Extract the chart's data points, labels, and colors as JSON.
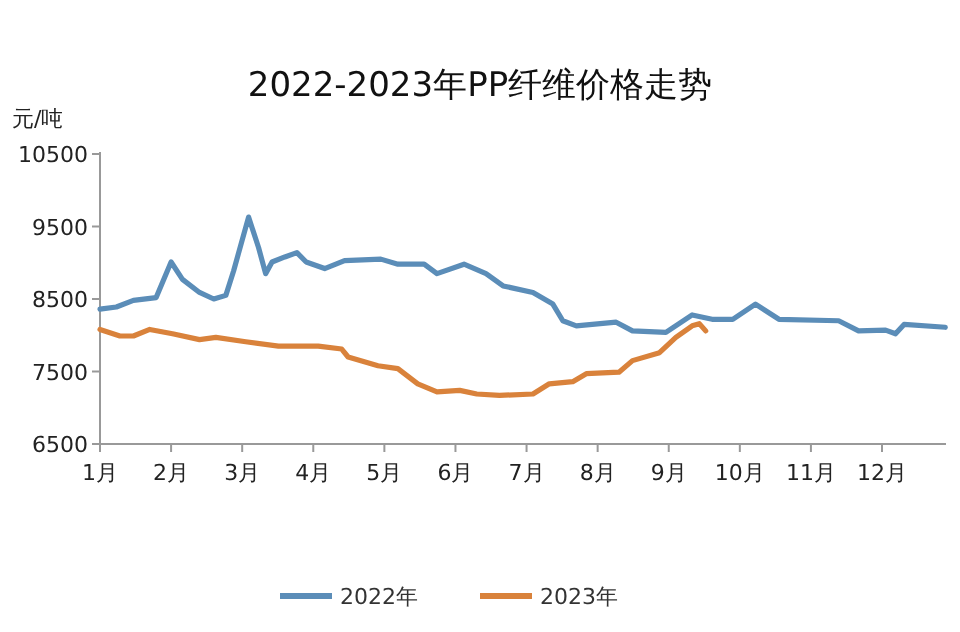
{
  "chart_data": {
    "type": "line",
    "title": "2022-2023年PP纤维价格走势",
    "ylabel": "元/吨",
    "xlim": [
      1,
      12.9
    ],
    "ylim": [
      6500,
      10500
    ],
    "xticks": [
      {
        "value": 1,
        "label": "1月"
      },
      {
        "value": 2,
        "label": "2月"
      },
      {
        "value": 3,
        "label": "3月"
      },
      {
        "value": 4,
        "label": "4月"
      },
      {
        "value": 5,
        "label": "5月"
      },
      {
        "value": 6,
        "label": "6月"
      },
      {
        "value": 7,
        "label": "7月"
      },
      {
        "value": 8,
        "label": "8月"
      },
      {
        "value": 9,
        "label": "9月"
      },
      {
        "value": 10,
        "label": "10月"
      },
      {
        "value": 11,
        "label": "11月"
      },
      {
        "value": 12,
        "label": "12月"
      }
    ],
    "yticks": [
      6500,
      7500,
      8500,
      9500,
      10500
    ],
    "legend": "bottom",
    "series": [
      {
        "name": "2022年",
        "color": "#5b8db8",
        "x": [
          1,
          1.23,
          1.47,
          1.79,
          2.0,
          2.16,
          2.4,
          2.6,
          2.77,
          2.88,
          3.09,
          3.23,
          3.33,
          3.42,
          3.6,
          3.77,
          3.9,
          4.16,
          4.44,
          4.95,
          5.19,
          5.56,
          5.74,
          6.12,
          6.43,
          6.67,
          7.09,
          7.37,
          7.51,
          7.7,
          8.26,
          8.49,
          8.96,
          9.33,
          9.61,
          9.9,
          10.22,
          10.55,
          11.39,
          11.67,
          12.05,
          12.19,
          12.31,
          12.89
        ],
        "values": [
          8360,
          8390,
          8480,
          8520,
          9010,
          8770,
          8590,
          8500,
          8550,
          8890,
          9630,
          9210,
          8850,
          9010,
          9080,
          9140,
          9010,
          8920,
          9030,
          9050,
          8980,
          8980,
          8850,
          8980,
          8850,
          8680,
          8590,
          8430,
          8200,
          8130,
          8180,
          8060,
          8040,
          8280,
          8220,
          8220,
          8430,
          8220,
          8200,
          8060,
          8070,
          8020,
          8150,
          8110
        ]
      },
      {
        "name": "2023年",
        "color": "#d9823b",
        "x": [
          1,
          1.28,
          1.47,
          1.7,
          2.02,
          2.4,
          2.63,
          3.05,
          3.51,
          4.07,
          4.4,
          4.49,
          4.91,
          5.19,
          5.47,
          5.74,
          6.06,
          6.3,
          6.62,
          7.09,
          7.32,
          7.65,
          7.84,
          8.3,
          8.49,
          8.87,
          9.1,
          9.33,
          9.43,
          9.52
        ],
        "values": [
          8080,
          7990,
          7990,
          8080,
          8020,
          7940,
          7970,
          7910,
          7850,
          7850,
          7810,
          7700,
          7580,
          7540,
          7330,
          7220,
          7240,
          7190,
          7170,
          7190,
          7330,
          7360,
          7470,
          7490,
          7650,
          7760,
          7970,
          8130,
          8160,
          8060
        ]
      }
    ]
  }
}
